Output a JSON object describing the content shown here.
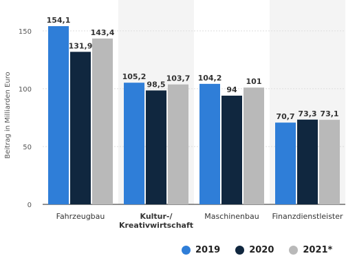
{
  "chart_data": {
    "type": "bar",
    "categories": [
      "Fahrzeugbau",
      "Kultur-/\nKreativwirtschaft",
      "Maschinenbau",
      "Finanzdienstleister"
    ],
    "series": [
      {
        "name": "2019",
        "values": [
          154.1,
          105.2,
          104.2,
          70.7
        ],
        "labels": [
          "154,1",
          "105,2",
          "104,2",
          "70,7"
        ]
      },
      {
        "name": "2020",
        "values": [
          131.9,
          98.5,
          94,
          73.3
        ],
        "labels": [
          "131,9",
          "98,5",
          "94",
          "73,3"
        ]
      },
      {
        "name": "2021*",
        "values": [
          143.4,
          103.7,
          101,
          73.1
        ],
        "labels": [
          "143,4",
          "103,7",
          "101",
          "73,1"
        ]
      }
    ],
    "ylabel": "Beitrag in Milliarden Euro",
    "ylim": [
      0,
      166
    ],
    "yticks": [
      0,
      50,
      100,
      150
    ],
    "grid": true,
    "legend_position": "bottom-right",
    "colors": {
      "2019": "#2f7ed8",
      "2020": "#10273f",
      "2021*": "#b9b9b9",
      "band": "#f4f4f4",
      "grid": "#dddddd"
    }
  },
  "legend": {
    "items": [
      {
        "label": "2019",
        "color": "#2f7ed8"
      },
      {
        "label": "2020",
        "color": "#10273f"
      },
      {
        "label": "2021*",
        "color": "#b9b9b9"
      }
    ]
  }
}
